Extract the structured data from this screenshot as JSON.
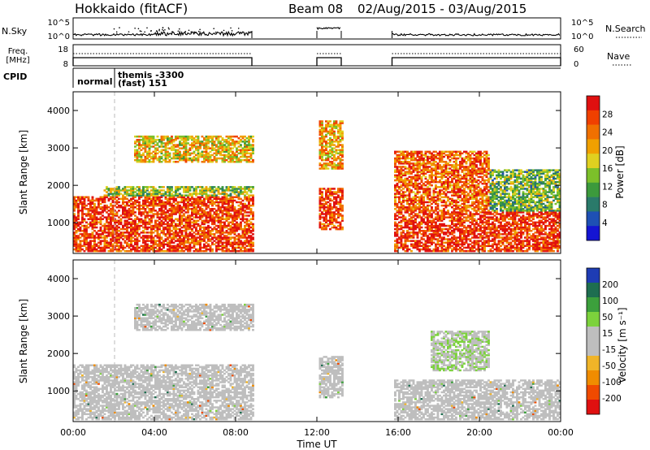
{
  "header": {
    "station": "Hokkaido (fitACF)",
    "beam": "Beam 08",
    "date_range": "02/Aug/2015 - 03/Aug/2015"
  },
  "top_panels": {
    "nsky_label": "N.Sky",
    "nsky_ticks": [
      "10^5",
      "10^0"
    ],
    "nsearch_label": "N.Search",
    "nsearch_ticks": [
      "10^5",
      "10^0"
    ],
    "freq_label_1": "Freq.",
    "freq_label_2": "[MHz]",
    "freq_ticks": [
      "18",
      "8"
    ],
    "nave_label": "Nave",
    "nave_ticks": [
      "60",
      "0"
    ],
    "cpid_label": "CPID",
    "cpid_modes": [
      "normal",
      "themis -3300",
      "(fast) 151"
    ]
  },
  "colors": {
    "power_scale": [
      "#1414d2",
      "#1e50b4",
      "#2a7a6a",
      "#3c9a3c",
      "#7cc02a",
      "#e0d020",
      "#f0a000",
      "#f07000",
      "#f04000",
      "#e01010"
    ],
    "velocity_scale": [
      "#e01010",
      "#f04a00",
      "#f08c00",
      "#f0b428",
      "#bebebe",
      "#bebebe",
      "#7cd23c",
      "#3ca03c",
      "#1e6e50",
      "#1e3cb4"
    ],
    "ground_scatter": "#bebebe"
  },
  "chart_data": [
    {
      "type": "heatmap",
      "name": "power",
      "xlabel": "Time UT",
      "ylabel": "Slant Range [km]",
      "x_ticks": [
        "00:00",
        "04:00",
        "08:00",
        "12:00",
        "16:00",
        "20:00",
        "00:00"
      ],
      "xlim_hours": [
        0,
        24
      ],
      "ylim_km": [
        180,
        4500
      ],
      "y_ticks": [
        1000,
        2000,
        3000,
        4000
      ],
      "colorbar_label": "Power [dB]",
      "colorbar_ticks": [
        "28",
        "24",
        "20",
        "16",
        "12",
        "8",
        "4"
      ],
      "colorbar_range": [
        0,
        30
      ],
      "data_gaps_hours": [
        [
          8.8,
          12.0
        ],
        [
          13.2,
          15.7
        ]
      ],
      "regions": [
        {
          "t": [
            0.0,
            8.8
          ],
          "r": [
            200,
            1700
          ],
          "level": 26
        },
        {
          "t": [
            1.5,
            8.8
          ],
          "r": [
            1700,
            1950
          ],
          "level": 14
        },
        {
          "t": [
            3.0,
            8.8
          ],
          "r": [
            2600,
            3300
          ],
          "level": 18
        },
        {
          "t": [
            12.0,
            13.2
          ],
          "r": [
            800,
            1900
          ],
          "level": 26
        },
        {
          "t": [
            12.0,
            13.2
          ],
          "r": [
            2400,
            3700
          ],
          "level": 20
        },
        {
          "t": [
            15.7,
            24.0
          ],
          "r": [
            200,
            1300
          ],
          "level": 27
        },
        {
          "t": [
            15.7,
            20.5
          ],
          "r": [
            1300,
            2900
          ],
          "level": 24
        },
        {
          "t": [
            20.5,
            24.0
          ],
          "r": [
            1300,
            2400
          ],
          "level": 12
        }
      ]
    },
    {
      "type": "heatmap",
      "name": "velocity",
      "xlabel": "Time UT",
      "ylabel": "Slant Range [km]",
      "x_ticks": [
        "00:00",
        "04:00",
        "08:00",
        "12:00",
        "16:00",
        "20:00",
        "00:00"
      ],
      "xlim_hours": [
        0,
        24
      ],
      "ylim_km": [
        180,
        4500
      ],
      "y_ticks": [
        1000,
        2000,
        3000,
        4000
      ],
      "colorbar_label": "Velocity [m s⁻¹]",
      "colorbar_ticks": [
        "200",
        "100",
        "50",
        "15",
        "-15",
        "-50",
        "-100",
        "-200"
      ],
      "colorbar_range": [
        -250,
        250
      ],
      "data_gaps_hours": [
        [
          8.8,
          12.0
        ],
        [
          13.2,
          15.7
        ]
      ],
      "regions": [
        {
          "t": [
            0.0,
            8.8
          ],
          "r": [
            200,
            1700
          ],
          "level": 0
        },
        {
          "t": [
            3.0,
            8.8
          ],
          "r": [
            2600,
            3300
          ],
          "level": 0
        },
        {
          "t": [
            12.0,
            13.2
          ],
          "r": [
            800,
            1900
          ],
          "level": 0
        },
        {
          "t": [
            15.7,
            16.3
          ],
          "r": [
            600,
            900
          ],
          "level": -60
        },
        {
          "t": [
            15.7,
            24.0
          ],
          "r": [
            200,
            1300
          ],
          "level": 0
        },
        {
          "t": [
            17.5,
            20.5
          ],
          "r": [
            1500,
            2600
          ],
          "level": 40
        }
      ]
    }
  ]
}
